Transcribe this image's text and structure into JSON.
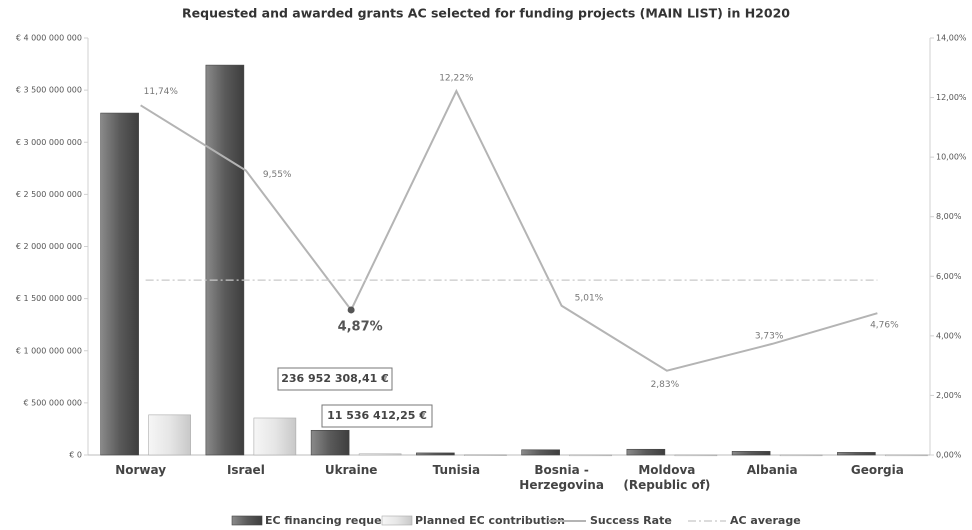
{
  "chart_data": {
    "type": "bar",
    "title": "Requested and awarded grants AC selected for funding projects (MAIN LIST) in H2020",
    "categories": [
      "Norway",
      "Israel",
      "Ukraine",
      "Tunisia",
      "Bosnia - Herzegovina",
      "Moldova (Republic of)",
      "Albania",
      "Georgia"
    ],
    "series": [
      {
        "name": "EC financing request",
        "type": "bar",
        "color": "#5e5e5e",
        "axis": "y",
        "values": [
          3280000000,
          3740000000,
          236952308.41,
          20000000,
          50000000,
          55000000,
          35000000,
          25000000
        ],
        "value_labels": [
          null,
          null,
          "236 952 308,41 €",
          null,
          null,
          null,
          null,
          null
        ]
      },
      {
        "name": "Planned EC contribution",
        "type": "bar",
        "color": "#e4e4e4",
        "axis": "y",
        "values": [
          385000000,
          355000000,
          11536412.25,
          3000000,
          2000000,
          2000000,
          2000000,
          2000000
        ],
        "value_labels": [
          null,
          null,
          "11 536 412,25 €",
          null,
          null,
          null,
          null,
          null
        ]
      },
      {
        "name": "Success Rate",
        "type": "line",
        "color": "#b4b4b4",
        "axis": "y2",
        "values": [
          11.74,
          9.55,
          4.87,
          12.22,
          5.01,
          2.83,
          3.73,
          4.76
        ],
        "value_labels": [
          "11,74%",
          "9,55%",
          "4,87%",
          "12,22%",
          "5,01%",
          "2,83%",
          "3,73%",
          "4,76%"
        ]
      },
      {
        "name": "AC average",
        "type": "dashed-line",
        "color": "#c8c8c8",
        "axis": "y2",
        "values": [
          5.87,
          5.87,
          5.87,
          5.87,
          5.87,
          5.87,
          5.87,
          5.87
        ]
      }
    ],
    "ylim": [
      0,
      4000000000
    ],
    "yticks": [
      {
        "value": 0,
        "label": "€ 0"
      },
      {
        "value": 500000000,
        "label": "€ 500 000 000"
      },
      {
        "value": 1000000000,
        "label": "€ 1 000 000 000"
      },
      {
        "value": 1500000000,
        "label": "€ 1 500 000 000"
      },
      {
        "value": 2000000000,
        "label": "€ 2 000 000 000"
      },
      {
        "value": 2500000000,
        "label": "€ 2 500 000 000"
      },
      {
        "value": 3000000000,
        "label": "€ 3 000 000 000"
      },
      {
        "value": 3500000000,
        "label": "€ 3 500 000 000"
      },
      {
        "value": 4000000000,
        "label": "€ 4 000 000 000"
      }
    ],
    "y2lim": [
      0,
      14
    ],
    "y2ticks": [
      {
        "value": 0,
        "label": "0,00%"
      },
      {
        "value": 2,
        "label": "2,00%"
      },
      {
        "value": 4,
        "label": "4,00%"
      },
      {
        "value": 6,
        "label": "6,00%"
      },
      {
        "value": 8,
        "label": "8,00%"
      },
      {
        "value": 10,
        "label": "10,00%"
      },
      {
        "value": 12,
        "label": "12,00%"
      },
      {
        "value": 14,
        "label": "14,00%"
      }
    ],
    "legend": "bottom"
  }
}
